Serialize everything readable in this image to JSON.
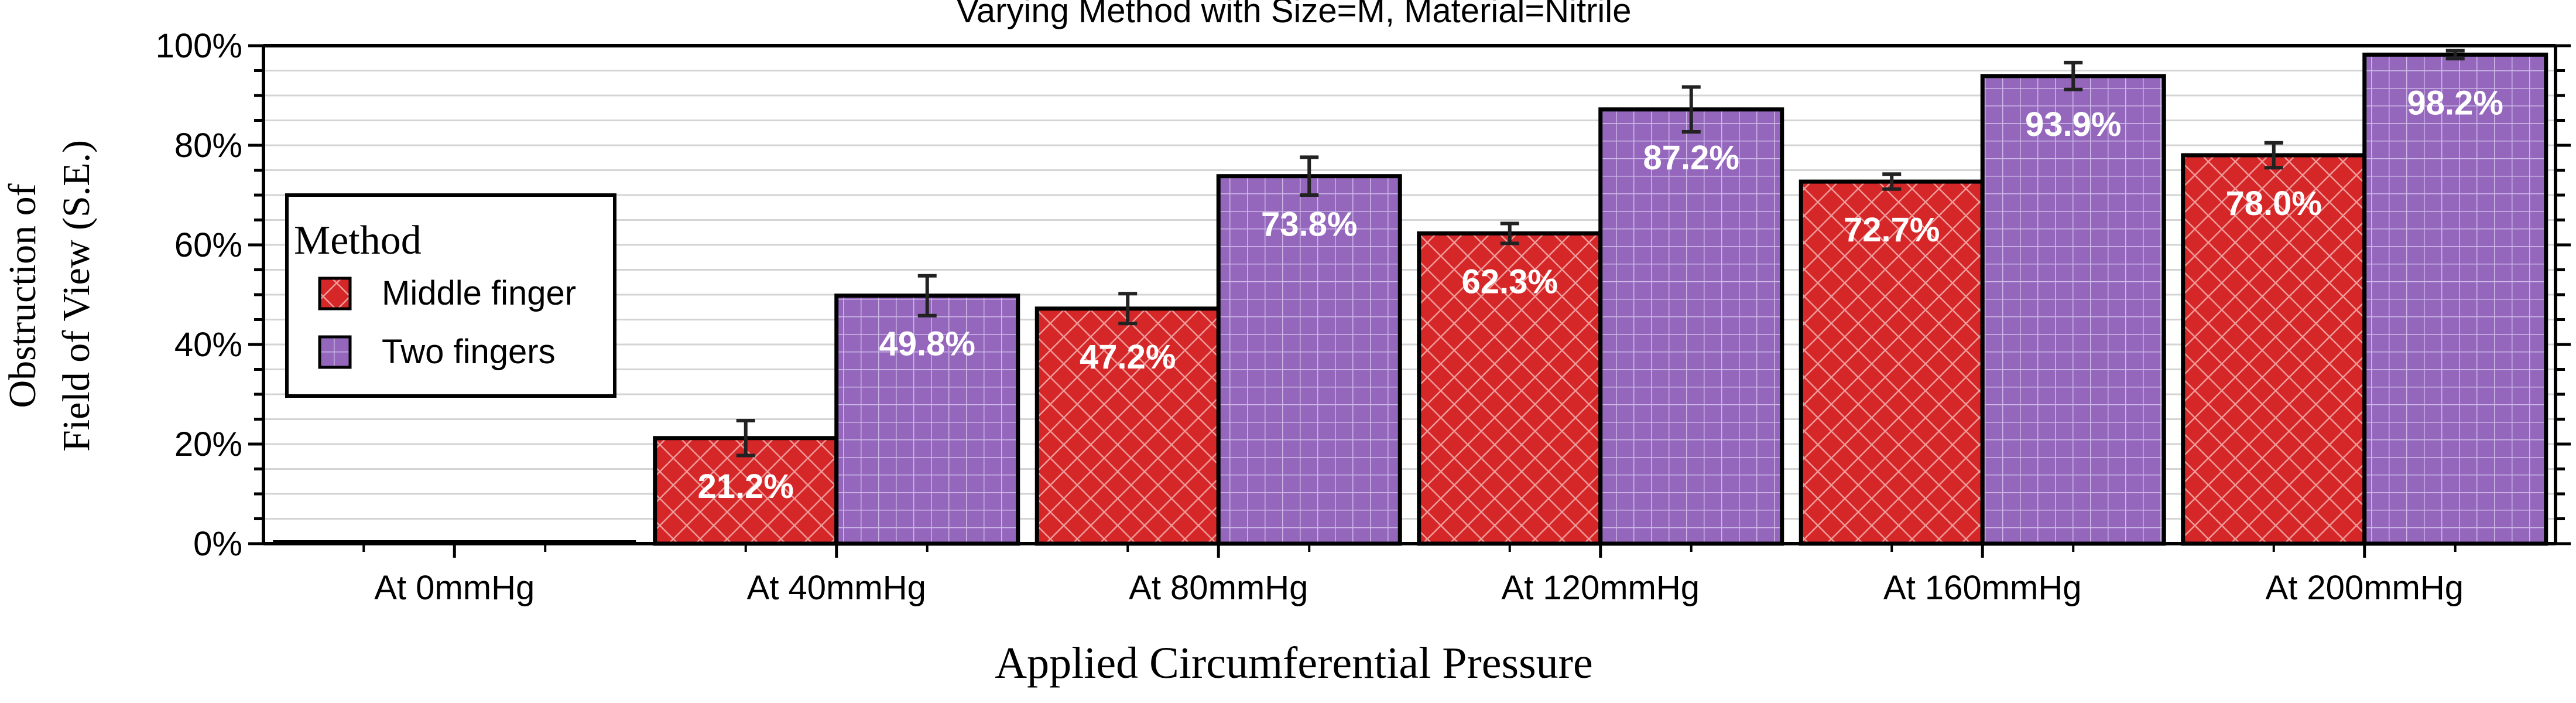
{
  "chart_data": {
    "type": "bar",
    "title": "Varying Method with Size=M, Material=Nitrile",
    "xlabel": "Applied Circumferential Pressure",
    "ylabel_lines": [
      "Obstruction of",
      "Field of View (S.E.)"
    ],
    "categories": [
      "At 0mmHg",
      "At 40mmHg",
      "At 80mmHg",
      "At 120mmHg",
      "At 160mmHg",
      "At 200mmHg"
    ],
    "ylim": [
      0,
      100
    ],
    "yticks": [
      0,
      20,
      40,
      60,
      80,
      100
    ],
    "ytick_labels": [
      "0%",
      "20%",
      "40%",
      "60%",
      "80%",
      "100%"
    ],
    "grid": true,
    "legend": {
      "title": "Method",
      "position": "left"
    },
    "series": [
      {
        "name": "Middle finger",
        "color": "#d62728",
        "pattern": "diagonal-crosshatch",
        "values": [
          0,
          21.2,
          47.2,
          62.3,
          72.7,
          78.0
        ],
        "errors": [
          0,
          3.5,
          3.0,
          2.0,
          1.5,
          2.5
        ],
        "labels": [
          "",
          "21.2%",
          "47.2%",
          "62.3%",
          "72.7%",
          "78.0%"
        ]
      },
      {
        "name": "Two fingers",
        "color": "#9467bd",
        "pattern": "grid",
        "values": [
          0,
          49.8,
          73.8,
          87.2,
          93.9,
          98.2
        ],
        "errors": [
          0,
          4.0,
          3.8,
          4.5,
          2.7,
          0.8
        ],
        "labels": [
          "",
          "49.8%",
          "73.8%",
          "87.2%",
          "93.9%",
          "98.2%"
        ]
      }
    ]
  }
}
